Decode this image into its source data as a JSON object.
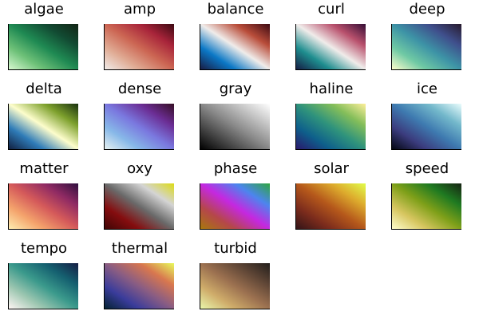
{
  "colormaps": [
    {
      "name": "algae",
      "colors": [
        "#d7f9d0",
        "#6ec178",
        "#1f8a53",
        "#124b33",
        "#122414"
      ]
    },
    {
      "name": "amp",
      "colors": [
        "#f1ece9",
        "#e0ab94",
        "#cc6653",
        "#a8243a",
        "#3c0912"
      ]
    },
    {
      "name": "balance",
      "colors": [
        "#181c43",
        "#0b78c6",
        "#f0ecea",
        "#b94d3a",
        "#3c0912"
      ]
    },
    {
      "name": "curl",
      "colors": [
        "#151d44",
        "#1e8e8f",
        "#f0ecea",
        "#b9516d",
        "#340d35"
      ]
    },
    {
      "name": "deep",
      "colors": [
        "#fdfecc",
        "#6fc9a4",
        "#3d93a6",
        "#3f4f8c",
        "#281a2c"
      ]
    },
    {
      "name": "delta",
      "colors": [
        "#112040",
        "#2f7cb8",
        "#fdfdcc",
        "#7ea12d",
        "#18310e"
      ]
    },
    {
      "name": "dense",
      "colors": [
        "#e6f1f1",
        "#87b8e8",
        "#7a78df",
        "#6b2d94",
        "#360e24"
      ]
    },
    {
      "name": "gray",
      "colors": [
        "#000000",
        "#444444",
        "#888888",
        "#c4c4c4",
        "#ffffff"
      ]
    },
    {
      "name": "haline",
      "colors": [
        "#2a186c",
        "#0e5f8b",
        "#2f937c",
        "#84be5a",
        "#fdef9a"
      ]
    },
    {
      "name": "ice",
      "colors": [
        "#040613",
        "#3b3c7e",
        "#3e7ab0",
        "#73b8cb",
        "#eafdfd"
      ]
    },
    {
      "name": "matter",
      "colors": [
        "#fdedb0",
        "#f4a36c",
        "#d55a5a",
        "#8f2a63",
        "#2f0f3e"
      ]
    },
    {
      "name": "oxy",
      "colors": [
        "#400505",
        "#850d0f",
        "#6a6a6a",
        "#d4d4d4",
        "#dcdb14"
      ]
    },
    {
      "name": "phase",
      "colors": [
        "#a8780d",
        "#b5474a",
        "#c528e0",
        "#4c85ee",
        "#2fa63f"
      ]
    },
    {
      "name": "solar",
      "colors": [
        "#331418",
        "#7c2c1c",
        "#b5581b",
        "#ddab2d",
        "#e1fd4b"
      ]
    },
    {
      "name": "speed",
      "colors": [
        "#fffdcd",
        "#d7c660",
        "#7fa019",
        "#1f7a21",
        "#172313"
      ]
    },
    {
      "name": "tempo",
      "colors": [
        "#fff6f4",
        "#9ec7b1",
        "#3b9a8c",
        "#156070",
        "#151d44"
      ]
    },
    {
      "name": "thermal",
      "colors": [
        "#042333",
        "#3a3c9b",
        "#8a5d83",
        "#d8774f",
        "#e8fa5b"
      ]
    },
    {
      "name": "turbid",
      "colors": [
        "#e9f6ab",
        "#cfac6a",
        "#9c7150",
        "#5f4636",
        "#221e1b"
      ]
    }
  ]
}
